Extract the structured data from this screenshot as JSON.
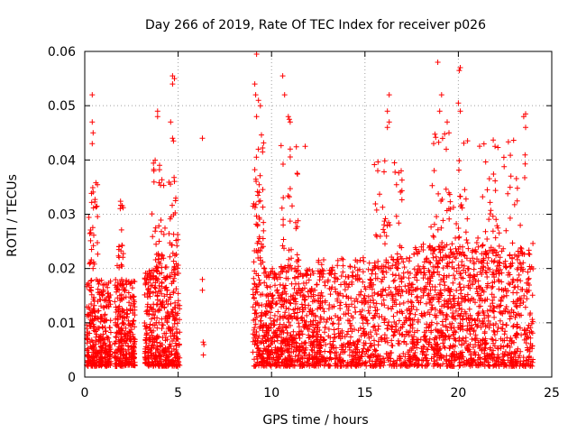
{
  "colors": {
    "series": "#ff0000",
    "grid": "#a0a0a0",
    "frame": "#000000"
  },
  "chart_data": {
    "type": "scatter",
    "title": "Day 266 of 2019, Rate Of TEC Index for receiver p026",
    "xlabel": "GPS time / hours",
    "ylabel": "ROTI / TECUs",
    "xlim": [
      0,
      25
    ],
    "ylim": [
      0,
      0.06
    ],
    "xticks": [
      0,
      5,
      10,
      15,
      20,
      25
    ],
    "yticks": [
      0,
      0.01,
      0.02,
      0.03,
      0.04,
      0.05,
      0.06
    ],
    "xtick_labels": [
      "0",
      "5",
      "10",
      "15",
      "20",
      "25"
    ],
    "ytick_labels": [
      "0",
      "0.01",
      "0.02",
      "0.03",
      "0.04",
      "0.05",
      "0.06"
    ],
    "grid": true,
    "marker": "+",
    "series": [
      {
        "name": "ROTI",
        "clusters": [
          {
            "x": [
              0.1,
              1.4
            ],
            "y": [
              0.002,
              0.018
            ],
            "n": 320
          },
          {
            "x": [
              1.6,
              2.7
            ],
            "y": [
              0.002,
              0.018
            ],
            "n": 280
          },
          {
            "x": [
              3.2,
              5.1
            ],
            "y": [
              0.002,
              0.02
            ],
            "n": 420
          },
          {
            "x": [
              9.0,
              12.5
            ],
            "y": [
              0.002,
              0.02
            ],
            "n": 700
          },
          {
            "x": [
              12.5,
              17.5
            ],
            "y": [
              0.002,
              0.022
            ],
            "n": 700
          },
          {
            "x": [
              17.5,
              24.0
            ],
            "y": [
              0.002,
              0.025
            ],
            "n": 1100
          },
          {
            "x": [
              0.2,
              0.7
            ],
            "y": [
              0.02,
              0.036
            ],
            "n": 30
          },
          {
            "x": [
              1.7,
              2.1
            ],
            "y": [
              0.02,
              0.033
            ],
            "n": 20
          },
          {
            "x": [
              3.6,
              4.4
            ],
            "y": [
              0.02,
              0.04
            ],
            "n": 40
          },
          {
            "x": [
              4.5,
              5.0
            ],
            "y": [
              0.02,
              0.04
            ],
            "n": 30
          },
          {
            "x": [
              9.0,
              9.6
            ],
            "y": [
              0.02,
              0.045
            ],
            "n": 50
          },
          {
            "x": [
              10.5,
              11.5
            ],
            "y": [
              0.02,
              0.043
            ],
            "n": 40
          },
          {
            "x": [
              15.5,
              17.0
            ],
            "y": [
              0.02,
              0.04
            ],
            "n": 50
          },
          {
            "x": [
              18.5,
              20.5
            ],
            "y": [
              0.02,
              0.045
            ],
            "n": 70
          },
          {
            "x": [
              21.0,
              23.6
            ],
            "y": [
              0.02,
              0.044
            ],
            "n": 70
          },
          {
            "x": [
              6.2,
              6.4
            ],
            "y": [
              0.003,
              0.007
            ],
            "n": 3
          }
        ],
        "points": [
          [
            0.4,
            0.052
          ],
          [
            0.4,
            0.047
          ],
          [
            0.45,
            0.045
          ],
          [
            0.4,
            0.043
          ],
          [
            3.9,
            0.049
          ],
          [
            3.9,
            0.048
          ],
          [
            3.7,
            0.038
          ],
          [
            4.7,
            0.0555
          ],
          [
            4.8,
            0.055
          ],
          [
            4.7,
            0.054
          ],
          [
            4.6,
            0.047
          ],
          [
            4.7,
            0.044
          ],
          [
            4.75,
            0.0435
          ],
          [
            6.3,
            0.044
          ],
          [
            6.3,
            0.018
          ],
          [
            6.3,
            0.016
          ],
          [
            9.2,
            0.0595
          ],
          [
            9.1,
            0.054
          ],
          [
            9.15,
            0.052
          ],
          [
            9.3,
            0.051
          ],
          [
            9.4,
            0.05
          ],
          [
            9.2,
            0.048
          ],
          [
            10.6,
            0.0555
          ],
          [
            10.7,
            0.052
          ],
          [
            10.9,
            0.048
          ],
          [
            11.0,
            0.047
          ],
          [
            10.95,
            0.0475
          ],
          [
            11.8,
            0.0425
          ],
          [
            11.0,
            0.042
          ],
          [
            16.3,
            0.052
          ],
          [
            16.2,
            0.049
          ],
          [
            16.3,
            0.047
          ],
          [
            16.2,
            0.046
          ],
          [
            18.9,
            0.058
          ],
          [
            19.1,
            0.052
          ],
          [
            19.0,
            0.049
          ],
          [
            19.4,
            0.047
          ],
          [
            19.5,
            0.045
          ],
          [
            20.1,
            0.057
          ],
          [
            20.05,
            0.0565
          ],
          [
            20.0,
            0.0505
          ],
          [
            20.1,
            0.049
          ],
          [
            23.6,
            0.0485
          ],
          [
            23.5,
            0.048
          ],
          [
            23.6,
            0.046
          ]
        ]
      }
    ]
  }
}
